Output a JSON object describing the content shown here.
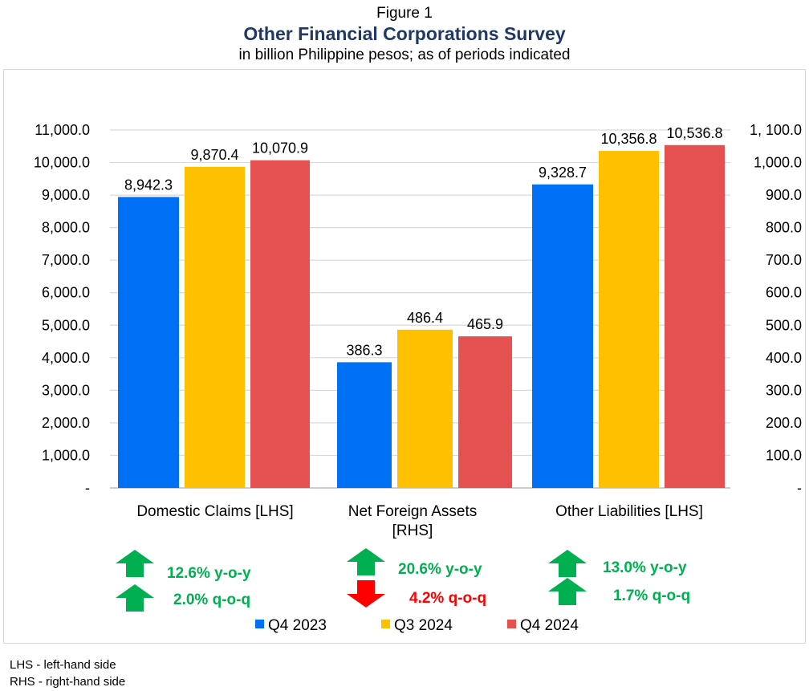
{
  "figure_label": "Figure 1",
  "title": "Other Financial Corporations Survey",
  "subtitle": "in billion Philippine pesos; as of periods indicated",
  "footnotes": [
    "LHS  - left-hand side",
    "RHS - right-hand side"
  ],
  "colors": {
    "Q4 2023": "#0070f5",
    "Q3 2024": "#ffc000",
    "Q4 2024": "#e55050",
    "up": "#00b050",
    "down": "#ff0000",
    "title": "#1f3864"
  },
  "chart_data": {
    "type": "bar",
    "categories": [
      {
        "lines": [
          "Domestic Claims [LHS]"
        ],
        "axis": "left"
      },
      {
        "lines": [
          "Net Foreign Assets",
          "[RHS]"
        ],
        "axis": "right"
      },
      {
        "lines": [
          "Other Liabilities [LHS]"
        ],
        "axis": "left"
      }
    ],
    "series": [
      {
        "name": "Q4 2023",
        "values": [
          8942.3,
          386.3,
          9328.7
        ],
        "labels": [
          "8,942.3",
          "386.3",
          "9,328.7"
        ]
      },
      {
        "name": "Q3 2024",
        "values": [
          9870.4,
          486.4,
          10356.8
        ],
        "labels": [
          "9,870.4",
          "486.4",
          "10,356.8"
        ]
      },
      {
        "name": "Q4 2024",
        "values": [
          10070.9,
          465.9,
          10536.8
        ],
        "labels": [
          "10,070.9",
          "465.9",
          "10,536.8"
        ]
      }
    ],
    "y_left": {
      "range": [
        0,
        11000
      ],
      "ticks": [
        "-",
        "1,000.0",
        "2,000.0",
        "3,000.0",
        "4,000.0",
        "5,000.0",
        "6,000.0",
        "7,000.0",
        "8,000.0",
        "9,000.0",
        "10,000.0",
        "11,000.0"
      ]
    },
    "y_right": {
      "range": [
        0,
        1100
      ],
      "ticks": [
        "-",
        "100.0",
        "200.0",
        "300.0",
        "400.0",
        "500.0",
        "600.0",
        "700.0",
        "800.0",
        "900.0",
        "1,000.0",
        "1, 100.0"
      ]
    },
    "grid": true,
    "legend": "bottom",
    "annotations": [
      {
        "category": "Domestic Claims [LHS]",
        "items": [
          {
            "text": "12.6%  y-o-y",
            "direction": "up"
          },
          {
            "text": "2.0% q-o-q",
            "direction": "up"
          }
        ]
      },
      {
        "category": "Net Foreign Assets [RHS]",
        "items": [
          {
            "text": "20.6%  y-o-y",
            "direction": "up"
          },
          {
            "text": "4.2% q-o-q",
            "direction": "down"
          }
        ]
      },
      {
        "category": "Other Liabilities [LHS]",
        "items": [
          {
            "text": "13.0% y-o-y",
            "direction": "up"
          },
          {
            "text": "1.7% q-o-q",
            "direction": "up"
          }
        ]
      }
    ]
  }
}
